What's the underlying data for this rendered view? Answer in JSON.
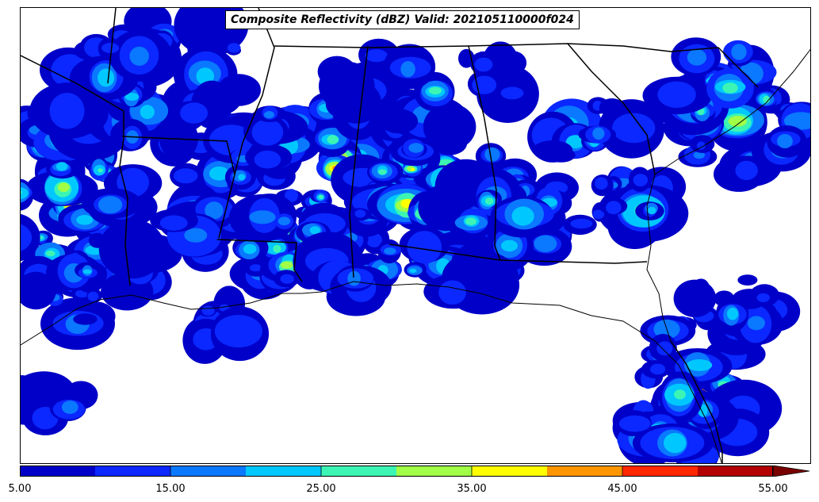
{
  "title": "Composite Reflectivity (dBZ) Valid: 202105110000f024",
  "colorbar": {
    "tick_labels": [
      "5.00",
      "15.00",
      "25.00",
      "35.00",
      "45.00",
      "55.00"
    ],
    "ticks": [
      5,
      15,
      25,
      35,
      45,
      55
    ],
    "range": [
      5,
      55
    ],
    "step": 5,
    "extend": "max",
    "colors": [
      "#0000c8",
      "#0a28ff",
      "#0a78ff",
      "#00c8ff",
      "#3cf5b4",
      "#a0ff46",
      "#ffff00",
      "#ff9600",
      "#ff2800",
      "#b40000",
      "#780000"
    ]
  },
  "colors": {
    "background": "#ffffff",
    "coastline": "#000000",
    "state_borders": "#000000"
  }
}
